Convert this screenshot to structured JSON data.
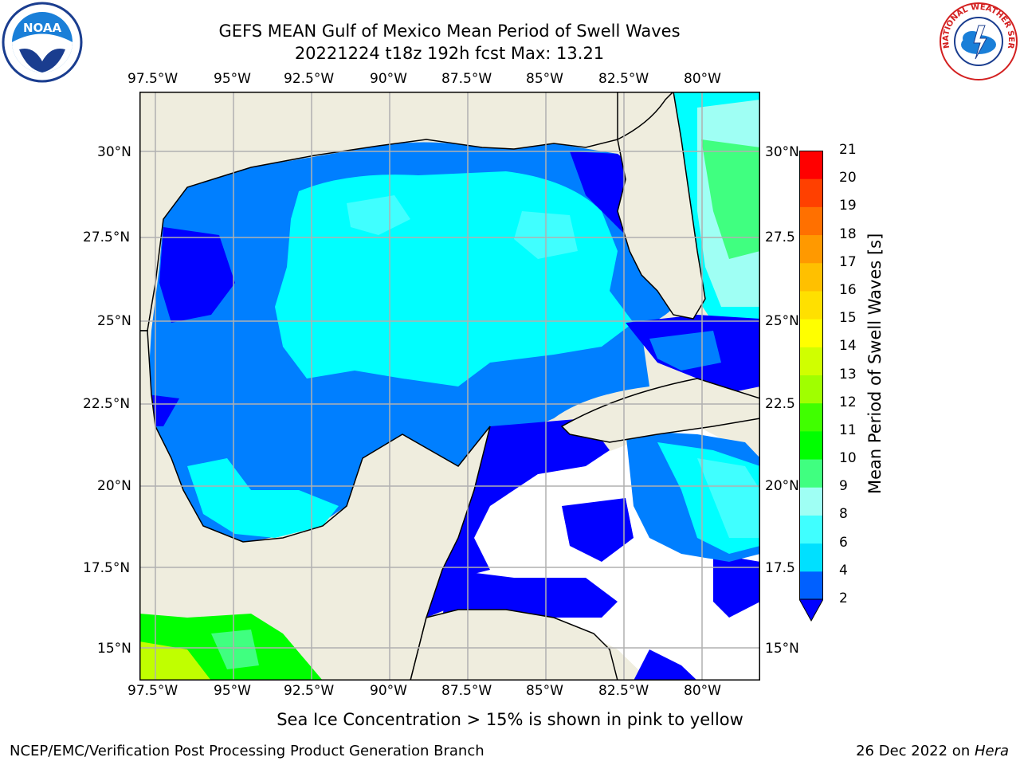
{
  "title": {
    "line1": "GEFS MEAN Gulf of Mexico Mean Period of Swell Waves",
    "line2": "20221224 t18z 192h fcst   Max: 13.21"
  },
  "logos": {
    "noara_left": "NOAA",
    "nws_right": "NATIONAL WEATHER SERVICE"
  },
  "map": {
    "lon_labels": [
      "97.5°W",
      "95°W",
      "92.5°W",
      "90°W",
      "87.5°W",
      "85°W",
      "82.5°W",
      "80°W"
    ],
    "lat_labels_left": [
      "30°N",
      "27.5°N",
      "25°N",
      "22.5°N",
      "20°N",
      "17.5°N",
      "15°N"
    ],
    "lat_labels_right": [
      "30°N",
      "27.5",
      "25°N",
      "22.5",
      "20°N",
      "17.5",
      "15°N"
    ],
    "colors": {
      "land": "#efedde",
      "blue": "#0000ff",
      "mid_blue": "#007fff",
      "cyan": "#00ffff",
      "light_cyan": "#40ffff",
      "pale_cyan": "#9ffff4",
      "light_green": "#40ff80",
      "green": "#00ff00",
      "yellow_green": "#c0ff00"
    }
  },
  "colorbar": {
    "title": "Mean Period of Swell Waves [s]",
    "ticks": [
      "2",
      "4",
      "6",
      "8",
      "9",
      "10",
      "11",
      "12",
      "13",
      "14",
      "15",
      "16",
      "17",
      "18",
      "19",
      "20",
      "21"
    ],
    "colors": [
      "#0060ff",
      "#00e0ff",
      "#40ffff",
      "#9ffff4",
      "#40ff80",
      "#00ff00",
      "#40ff00",
      "#a0ff00",
      "#d0ff00",
      "#ffff00",
      "#ffe000",
      "#ffc000",
      "#ff9900",
      "#ff7000",
      "#ff4000",
      "#ff0000"
    ]
  },
  "footer": {
    "sea_ice_note": "Sea Ice Concentration > 15% is shown in pink to yellow",
    "left": "NCEP/EMC/Verification Post Processing Product Generation Branch",
    "date": "26 Dec 2022 on ",
    "host": "Hera"
  }
}
